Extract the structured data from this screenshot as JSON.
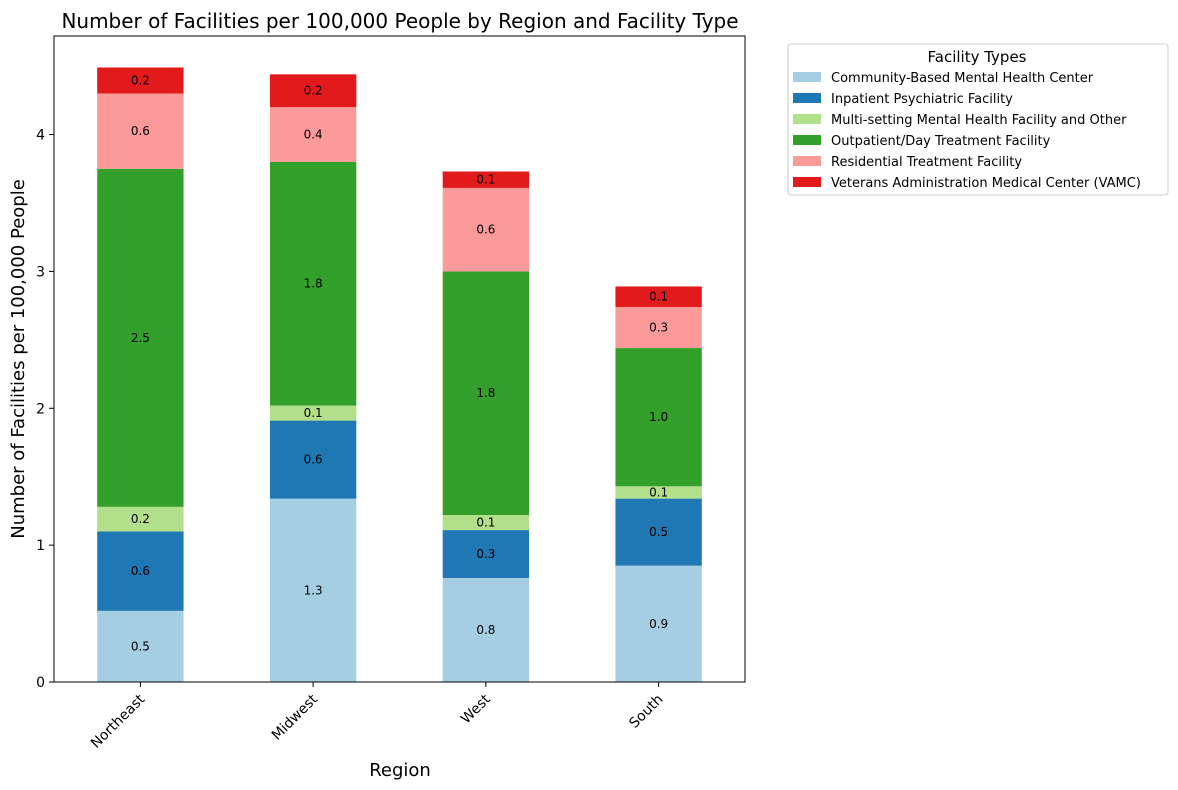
{
  "chart_data": {
    "type": "bar",
    "stacked": true,
    "title": "Number of Facilities per 100,000 People by Region and Facility Type",
    "xlabel": "Region",
    "ylabel": "Number of Facilities per 100,000 People",
    "categories": [
      "Northeast",
      "Midwest",
      "West",
      "South"
    ],
    "ylim": [
      0,
      4.72
    ],
    "yticks": [
      0,
      1,
      2,
      3,
      4
    ],
    "grid": false,
    "legend": {
      "title": "Facility Types",
      "placement": "outside-upper-right"
    },
    "series": [
      {
        "name": "Community-Based Mental Health Center",
        "color": "#a6cee3",
        "values": [
          0.52,
          1.34,
          0.76,
          0.85
        ],
        "labels": [
          "0.5",
          "1.3",
          "0.8",
          "0.9"
        ]
      },
      {
        "name": "Inpatient Psychiatric Facility",
        "color": "#1f78b4",
        "values": [
          0.58,
          0.57,
          0.35,
          0.49
        ],
        "labels": [
          "0.6",
          "0.6",
          "0.3",
          "0.5"
        ]
      },
      {
        "name": "Multi-setting Mental Health Facility and Other",
        "color": "#b2df8a",
        "values": [
          0.18,
          0.11,
          0.11,
          0.09
        ],
        "labels": [
          "0.2",
          "0.1",
          "0.1",
          "0.1"
        ]
      },
      {
        "name": "Outpatient/Day Treatment Facility",
        "color": "#33a02c",
        "values": [
          2.47,
          1.78,
          1.78,
          1.01
        ],
        "labels": [
          "2.5",
          "1.8",
          "1.8",
          "1.0"
        ]
      },
      {
        "name": "Residential Treatment Facility",
        "color": "#fb9a99",
        "values": [
          0.55,
          0.4,
          0.61,
          0.3
        ],
        "labels": [
          "0.6",
          "0.4",
          "0.6",
          "0.3"
        ]
      },
      {
        "name": "Veterans Administration Medical Center (VAMC)",
        "color": "#e31a1c",
        "values": [
          0.19,
          0.24,
          0.12,
          0.15
        ],
        "labels": [
          "0.2",
          "0.2",
          "0.1",
          "0.1"
        ]
      }
    ]
  }
}
